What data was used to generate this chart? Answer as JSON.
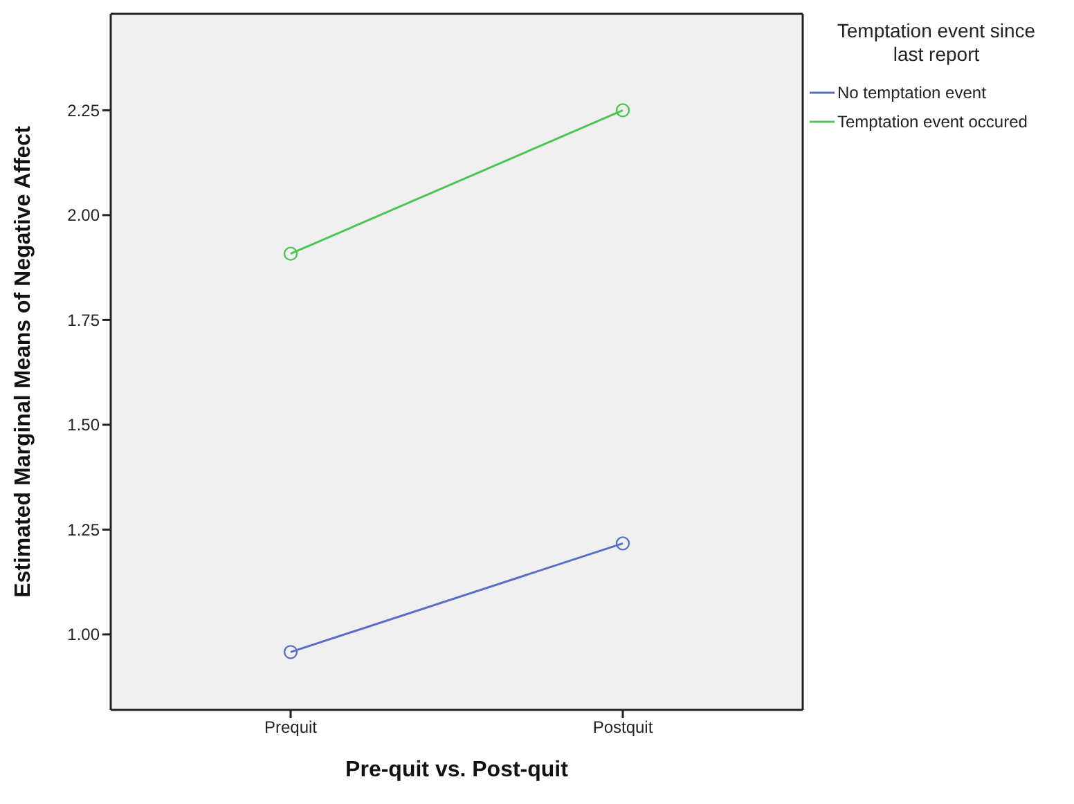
{
  "chart_data": {
    "type": "line",
    "xlabel": "Pre-quit vs. Post-quit",
    "ylabel": "Estimated Marginal Means of Negative Affect",
    "legend_title": "Temptation event since last report",
    "categories": [
      "Prequit",
      "Postquit"
    ],
    "series": [
      {
        "name": "No temptation event",
        "color": "#5a6fc4",
        "values": [
          0.958,
          1.217
        ]
      },
      {
        "name": "Temptation event occured",
        "color": "#4cc454",
        "values": [
          1.908,
          2.25
        ]
      }
    ],
    "ylim": [
      0.82,
      2.48
    ],
    "yticks": [
      {
        "value": 1,
        "label": "1.00"
      },
      {
        "value": 1.25,
        "label": "1.25"
      },
      {
        "value": 1.5,
        "label": "1.50"
      },
      {
        "value": 1.75,
        "label": "1.75"
      },
      {
        "value": 2,
        "label": "2.00"
      },
      {
        "value": 2.25,
        "label": "2.25"
      }
    ],
    "grid": false,
    "legend": "top right",
    "marker": "circle",
    "line_style": "solid"
  }
}
